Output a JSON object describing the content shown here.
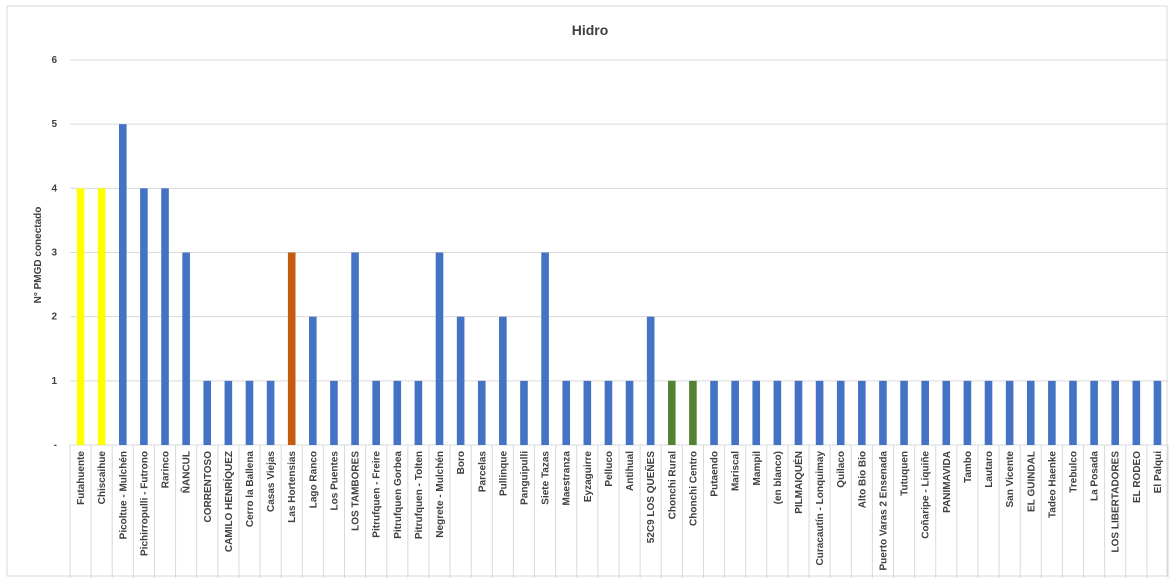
{
  "chart_data": {
    "type": "bar",
    "title": "Hidro",
    "xlabel": "",
    "ylabel": "N° PMGD conectado",
    "ylim": [
      0,
      6
    ],
    "y_ticks": [
      "-",
      "1",
      "2",
      "3",
      "4",
      "5",
      "6"
    ],
    "grid": true,
    "legend": "none",
    "categories": [
      "Futahuente",
      "Chiscaihue",
      "Picoltue - Mulchén",
      "Pichirropulli - Futrono",
      "Rarinco",
      "ÑANCUL",
      "CORRENTOSO",
      "CAMILO HENRÍQUEZ",
      "Cerro la Ballena",
      "Casas Viejas",
      "Las Hortensias",
      "Lago Ranco",
      "Los Puentes",
      "LOS TAMBORES",
      "Pitrufquen - Freire",
      "Pitrufquen Gorbea",
      "Pitrufquen - Tolten",
      "Negrete - Mulchén",
      "Boro",
      "Parcelas",
      "Pullinque",
      "Panguipulli",
      "Siete Tazas",
      "Maestranza",
      "Eyzaguirre",
      "Pelluco",
      "Antihual",
      "52C9 LOS QUEÑES",
      "Chonchi Rural",
      "Chonchi Centro",
      "Putaendo",
      "Mariscal",
      "Mampil",
      "(en blanco)",
      "PILMAIQUÉN",
      "Curacautín - Lonquimay",
      "Quilaco",
      "Alto Bio Bio",
      "Puerto Varas 2 Ensenada",
      "Tutuquen",
      "Coñaripe - Liquiñe",
      "PANIMAVIDA",
      "Tambo",
      "Lautaro",
      "San Vicente",
      "EL GUINDAL",
      "Tadeo Haenke",
      "Trebulco",
      "La Posada",
      "LOS LIBERTADORES",
      "EL RODEO",
      "El Palqui"
    ],
    "values": [
      4,
      4,
      5,
      4,
      4,
      3,
      1,
      1,
      1,
      1,
      3,
      2,
      1,
      3,
      1,
      1,
      1,
      3,
      2,
      1,
      2,
      1,
      3,
      1,
      1,
      1,
      1,
      2,
      1,
      1,
      1,
      1,
      1,
      1,
      1,
      1,
      1,
      1,
      1,
      1,
      1,
      1,
      1,
      1,
      1,
      1,
      1,
      1,
      1,
      1,
      1,
      1
    ],
    "bar_colors": [
      "#FFFF00",
      "#FFFF00",
      "#4472C4",
      "#4472C4",
      "#4472C4",
      "#4472C4",
      "#4472C4",
      "#4472C4",
      "#4472C4",
      "#4472C4",
      "#C55A11",
      "#4472C4",
      "#4472C4",
      "#4472C4",
      "#4472C4",
      "#4472C4",
      "#4472C4",
      "#4472C4",
      "#4472C4",
      "#4472C4",
      "#4472C4",
      "#4472C4",
      "#4472C4",
      "#4472C4",
      "#4472C4",
      "#4472C4",
      "#4472C4",
      "#4472C4",
      "#548235",
      "#548235",
      "#4472C4",
      "#4472C4",
      "#4472C4",
      "#4472C4",
      "#4472C4",
      "#4472C4",
      "#4472C4",
      "#4472C4",
      "#4472C4",
      "#4472C4",
      "#4472C4",
      "#4472C4",
      "#4472C4",
      "#4472C4",
      "#4472C4",
      "#4472C4",
      "#4472C4",
      "#4472C4",
      "#4472C4",
      "#4472C4",
      "#4472C4",
      "#4472C4"
    ]
  }
}
